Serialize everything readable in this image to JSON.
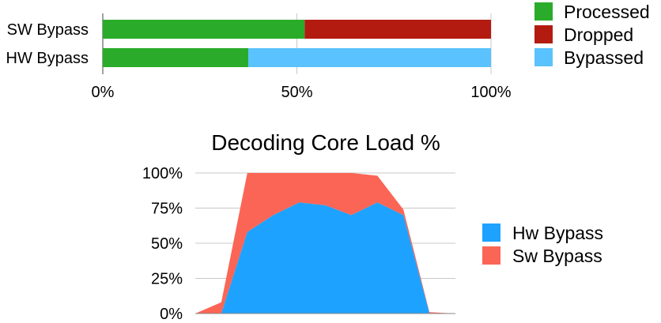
{
  "chart_data": [
    {
      "type": "bar",
      "orientation": "horizontal",
      "stacked": true,
      "percent_stacked": true,
      "title": "",
      "categories": [
        "SW Bypass",
        "HW Bypass"
      ],
      "series": [
        {
          "name": "Processed",
          "color": "#2aac2a",
          "values": [
            52,
            37.5
          ]
        },
        {
          "name": "Dropped",
          "color": "#b31b11",
          "values": [
            48,
            0
          ]
        },
        {
          "name": "Bypassed",
          "color": "#5ac2ff",
          "values": [
            0,
            62.5
          ]
        }
      ],
      "xlim": [
        0,
        100
      ],
      "xticks": [
        "0%",
        "50%",
        "100%"
      ],
      "grid": true,
      "legend_position": "right"
    },
    {
      "type": "area",
      "stacked": true,
      "title": "Decoding Core Load %",
      "x": [
        0,
        1,
        2,
        3,
        4,
        5,
        6,
        7,
        8,
        9,
        10
      ],
      "series": [
        {
          "name": "Hw Bypass",
          "color": "#1ea2ff",
          "values": [
            0,
            0,
            58,
            70,
            79,
            77,
            70,
            79,
            70,
            0,
            0
          ]
        },
        {
          "name": "Sw Bypass",
          "color": "#fb6555",
          "values": [
            0,
            8,
            42,
            30,
            21,
            23,
            30,
            19,
            4,
            1,
            0
          ]
        }
      ],
      "ylim": [
        0,
        100
      ],
      "yticks": [
        "100%",
        "75%",
        "50%",
        "25%",
        "0%"
      ],
      "grid": true,
      "legend_position": "right"
    }
  ]
}
